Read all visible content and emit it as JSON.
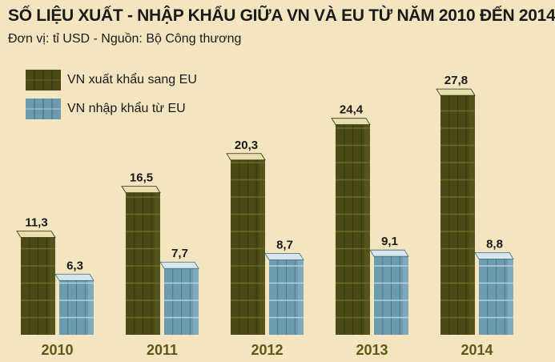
{
  "chart_data": {
    "type": "bar",
    "title": "SỐ LIỆU XUẤT - NHẬP KHẨU GIỮA VN VÀ EU TỪ NĂM 2010 ĐẾN 2014",
    "subtitle": "Đơn vị: tỉ USD - Nguồn: Bộ Công thương",
    "categories": [
      "2010",
      "2011",
      "2012",
      "2013",
      "2014"
    ],
    "series": [
      {
        "name": "VN xuất khẩu sang EU",
        "values": [
          11.3,
          16.5,
          20.3,
          24.4,
          27.8
        ],
        "labels": [
          "11,3",
          "16,5",
          "20,3",
          "24,4",
          "27,8"
        ],
        "color": "#4b4a17"
      },
      {
        "name": "VN nhập khẩu từ EU",
        "values": [
          6.3,
          7.7,
          8.7,
          9.1,
          8.8
        ],
        "labels": [
          "6,3",
          "7,7",
          "8,7",
          "9,1",
          "8,8"
        ],
        "color": "#6c9bb0"
      }
    ],
    "ylim": [
      0,
      28
    ],
    "grid": false,
    "legend": "top-left"
  },
  "colors": {
    "background": "#f3e5c0",
    "export": "#4b4a17",
    "export_light": "#5c5b1e",
    "export_top": "#e8dfae",
    "import": "#6c9bb0",
    "import_light": "#8fb6c7",
    "import_top": "#d6e6ec",
    "year_label": "#5b5a17"
  }
}
